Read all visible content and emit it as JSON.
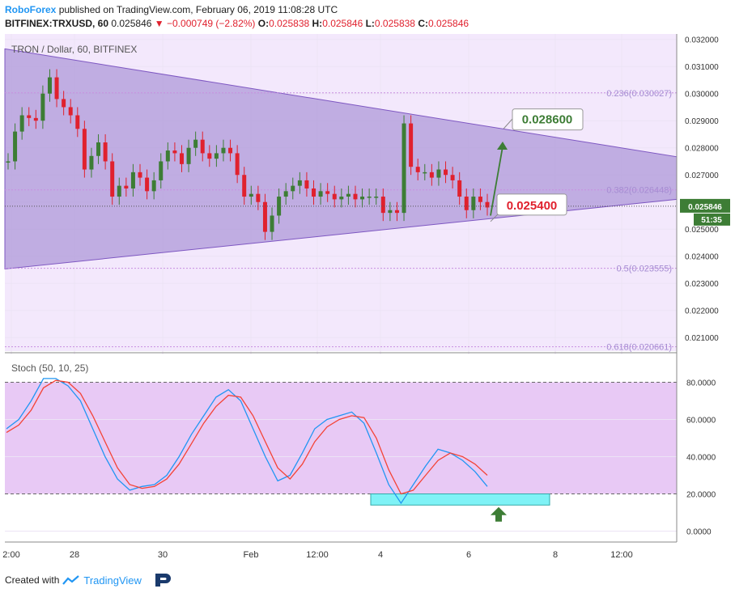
{
  "header": {
    "author": "RoboForex",
    "published_text": "published on TradingView.com, February 06, 2019 11:08:28 UTC",
    "symbol": "BITFINEX:TRXUSD, 60",
    "last": "0.025846",
    "change": "−0.000749 (−2.82%)",
    "o_label": "O:",
    "o": "0.025838",
    "h_label": "H:",
    "h": "0.025846",
    "l_label": "L:",
    "l": "0.025838",
    "c_label": "C:",
    "c": "0.025846"
  },
  "footer": {
    "created_with": "Created with",
    "brand": "TradingView"
  },
  "colors": {
    "up": "#3d7d35",
    "down": "#e0212e",
    "triangle_fill": "#b39ddb",
    "pane_bg": "#f3e8fc",
    "stoch_band": "#e8c9f5",
    "k_line": "#2196f3",
    "d_line": "#f44336",
    "support_box": "#7ff2f6",
    "target_up": "#3d7d35",
    "target_down": "#e0212e"
  },
  "chart_data": [
    {
      "type": "candlestick",
      "title": "TRON / Dollar, 60, BITFINEX",
      "ylim": [
        0.0205,
        0.0322
      ],
      "y_ticks": [
        "0.032000",
        "0.031000",
        "0.030000",
        "0.029000",
        "0.028000",
        "0.027000",
        "0.026000",
        "0.025000",
        "0.024000",
        "0.023000",
        "0.022000",
        "0.021000"
      ],
      "x_ticks": [
        "2:00",
        "28",
        "30",
        "Feb",
        "12:00",
        "4",
        "6",
        "8",
        "12:00"
      ],
      "price_label": "0.025846",
      "countdown_label": "51:35",
      "series": [
        {
          "name": "price",
          "values": [
            0.0275,
            0.0286,
            0.0292,
            0.0291,
            0.029,
            0.03,
            0.0306,
            0.0298,
            0.0295,
            0.0292,
            0.0287,
            0.0272,
            0.0277,
            0.0282,
            0.0275,
            0.0262,
            0.0266,
            0.0265,
            0.0271,
            0.0269,
            0.0264,
            0.0268,
            0.0275,
            0.0279,
            0.0278,
            0.0274,
            0.028,
            0.0283,
            0.0278,
            0.0276,
            0.0278,
            0.028,
            0.0278,
            0.027,
            0.0262,
            0.0263,
            0.026,
            0.0249,
            0.0255,
            0.0262,
            0.0264,
            0.0266,
            0.0268,
            0.0265,
            0.0262,
            0.0264,
            0.0263,
            0.0261,
            0.0262,
            0.0263,
            0.0261,
            0.0262,
            0.0262,
            0.0262,
            0.0256,
            0.0257,
            0.0256,
            0.0289,
            0.0273,
            0.0271,
            0.0271,
            0.0269,
            0.0272,
            0.027,
            0.0268,
            0.0262,
            0.0257,
            0.0262,
            0.026,
            0.0258
          ]
        }
      ],
      "fibonacci": [
        {
          "label": "0.236(0.030027)",
          "value": 0.030027
        },
        {
          "label": "0.382(0.026448)",
          "value": 0.026448
        },
        {
          "label": "0.5(0.023555)",
          "value": 0.023555
        },
        {
          "label": "0.618(0.020661)",
          "value": 0.020661
        }
      ],
      "annotations": [
        {
          "label": "0.028600",
          "value": 0.0286,
          "kind": "target-up"
        },
        {
          "label": "0.025400",
          "value": 0.0254,
          "kind": "target-down"
        }
      ]
    },
    {
      "type": "line",
      "title": "Stoch (50, 10, 25)",
      "ylim": [
        -5,
        95
      ],
      "y_ticks": [
        "80.0000",
        "60.0000",
        "40.0000",
        "20.0000",
        "0.0000"
      ],
      "band": [
        20,
        80
      ],
      "series": [
        {
          "name": "%K",
          "values": [
            55,
            60,
            70,
            82,
            82,
            78,
            70,
            55,
            40,
            28,
            22,
            24,
            25,
            30,
            40,
            52,
            62,
            72,
            76,
            70,
            55,
            40,
            27,
            30,
            42,
            55,
            60,
            62,
            64,
            58,
            42,
            25,
            15,
            25,
            35,
            44,
            42,
            38,
            32,
            24
          ]
        },
        {
          "name": "%D",
          "values": [
            53,
            57,
            65,
            77,
            81,
            80,
            74,
            62,
            48,
            34,
            25,
            23,
            24,
            28,
            36,
            47,
            58,
            67,
            73,
            72,
            62,
            48,
            34,
            28,
            36,
            48,
            56,
            60,
            62,
            61,
            50,
            33,
            20,
            22,
            30,
            38,
            42,
            40,
            36,
            30
          ]
        }
      ]
    }
  ]
}
